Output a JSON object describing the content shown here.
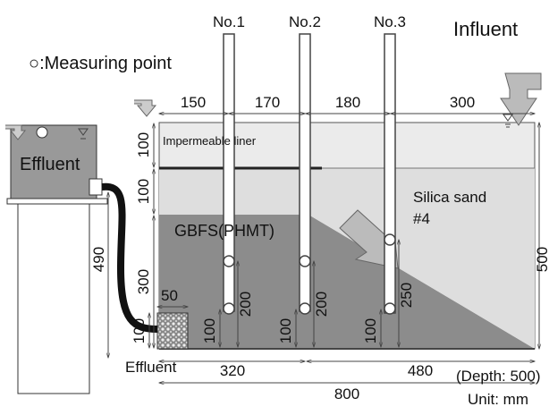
{
  "labels": {
    "tube1": "No.1",
    "tube2": "No.2",
    "tube3": "No.3",
    "influent": "Influent",
    "legend": "○:Measuring point",
    "liner": "Impermeable liner",
    "sand": [
      "Silica sand",
      "#4"
    ],
    "gbfs": "GBFS(PHMT)",
    "effluent_tank": "Effluent",
    "effluent_outlet": "Effluent",
    "depth": "(Depth: 500)",
    "unit": "Unit: mm"
  },
  "dimensions": {
    "top": [
      "150",
      "170",
      "180",
      "300"
    ],
    "left": [
      "100",
      "100",
      "300"
    ],
    "stand": "490",
    "right": "500",
    "outlet": "50",
    "tube1": [
      "200",
      "100"
    ],
    "tube2": [
      "200",
      "100"
    ],
    "tube3": [
      "250",
      "100"
    ],
    "outlet_h": "100",
    "bottom": [
      "320",
      "480"
    ],
    "total": "800"
  }
}
